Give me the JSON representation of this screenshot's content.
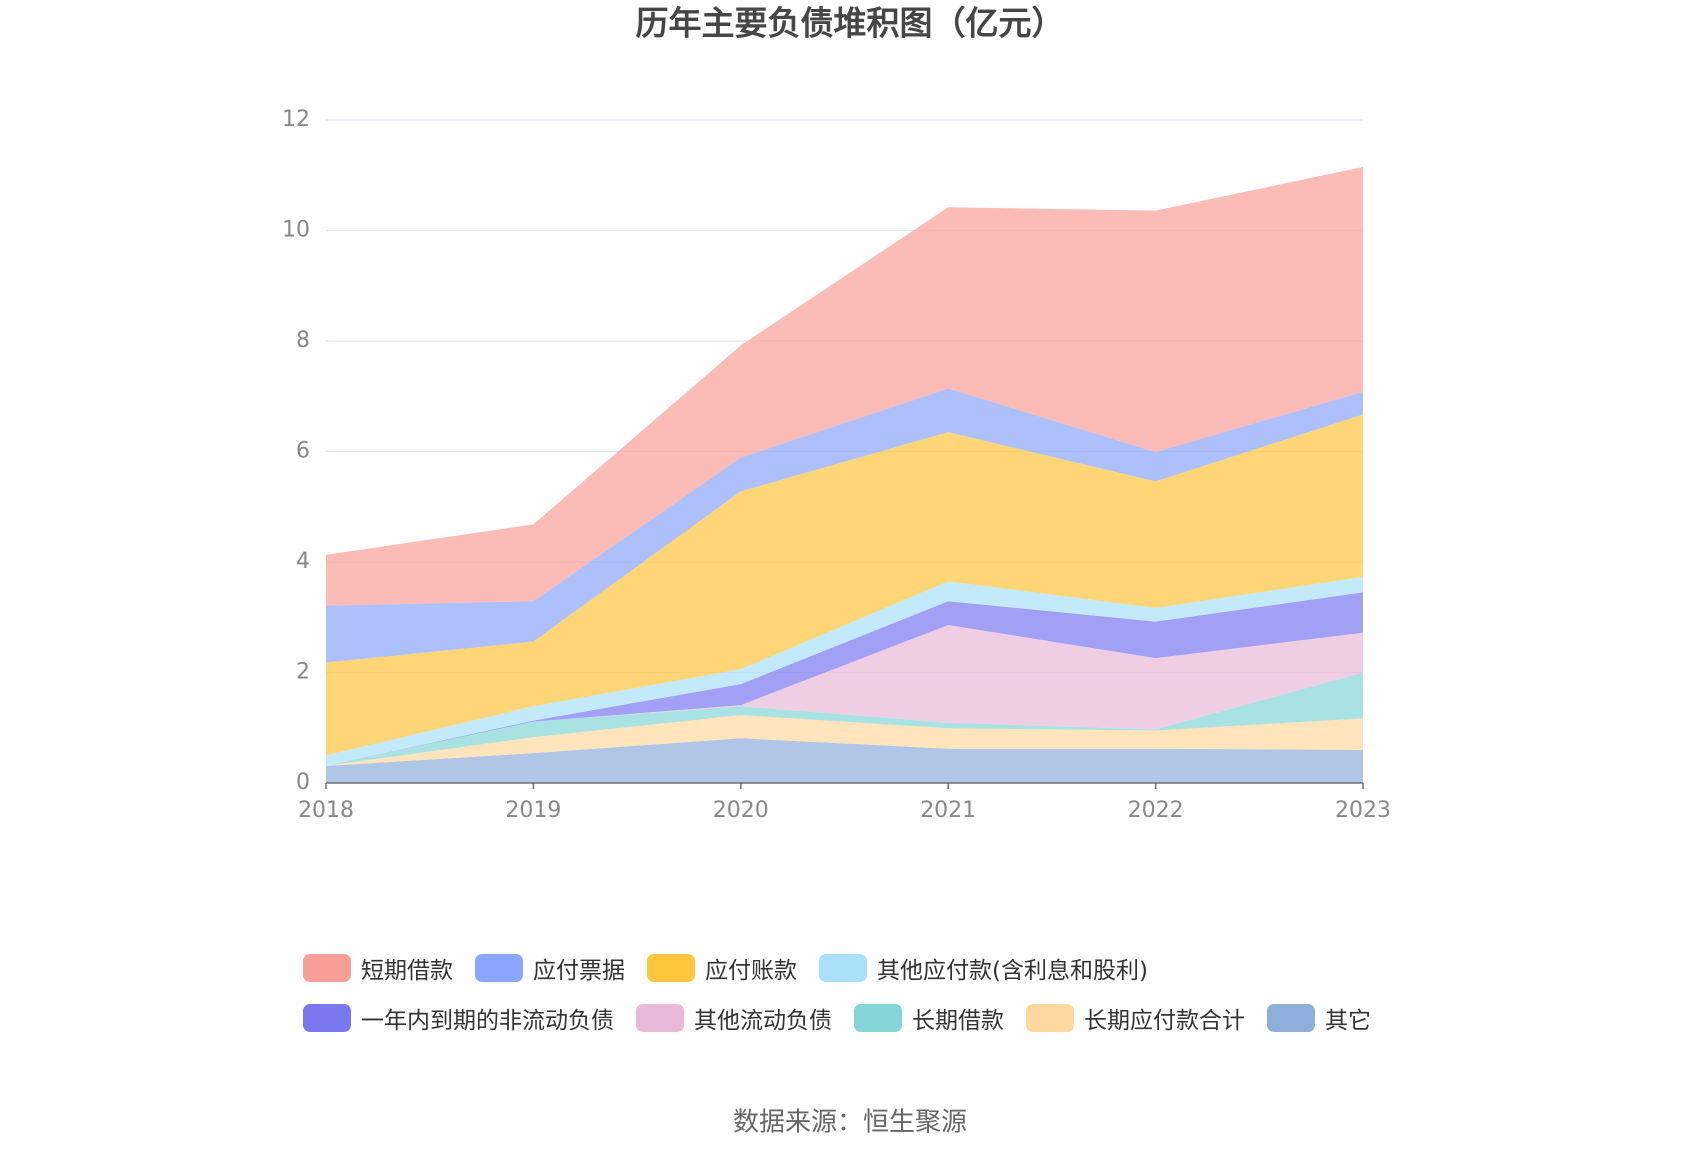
{
  "chart_data": {
    "type": "area",
    "stacked": true,
    "title": "历年主要负债堆积图（亿元）",
    "source": "数据来源：恒生聚源",
    "x": [
      "2018",
      "2019",
      "2020",
      "2021",
      "2022",
      "2023"
    ],
    "ylim": [
      0,
      12
    ],
    "yticks": [
      0,
      2,
      4,
      6,
      8,
      10,
      12
    ],
    "grid": true,
    "series": [
      {
        "name": "短期借款",
        "color": "#fa9f98",
        "values": [
          0.92,
          1.39,
          2.03,
          3.28,
          4.37,
          4.07
        ]
      },
      {
        "name": "应付票据",
        "color": "#8aa5fb",
        "values": [
          1.03,
          0.73,
          0.61,
          0.79,
          0.53,
          0.41
        ]
      },
      {
        "name": "应付账款",
        "color": "#ffc53d",
        "values": [
          1.68,
          1.17,
          3.22,
          2.7,
          2.29,
          2.94
        ]
      },
      {
        "name": "其他应付款(含利息和股利)",
        "color": "#a8e1f8",
        "values": [
          0.19,
          0.26,
          0.27,
          0.36,
          0.25,
          0.28
        ]
      },
      {
        "name": "一年内到期的非流动负债",
        "color": "#7b78ef",
        "values": [
          0,
          0.02,
          0.38,
          0.43,
          0.66,
          0.73
        ]
      },
      {
        "name": "其他流动负债",
        "color": "#e8b9d9",
        "values": [
          0,
          0,
          0.02,
          1.77,
          1.29,
          0.72
        ]
      },
      {
        "name": "长期借款",
        "color": "#84d5d5",
        "values": [
          0,
          0.28,
          0.16,
          0.1,
          0.02,
          0.83
        ]
      },
      {
        "name": "长期应付款合计",
        "color": "#ffd89f",
        "values": [
          0,
          0.29,
          0.42,
          0.37,
          0.33,
          0.57
        ]
      },
      {
        "name": "其它",
        "color": "#8eaedb",
        "values": [
          0.31,
          0.54,
          0.81,
          0.62,
          0.62,
          0.6
        ]
      }
    ]
  }
}
